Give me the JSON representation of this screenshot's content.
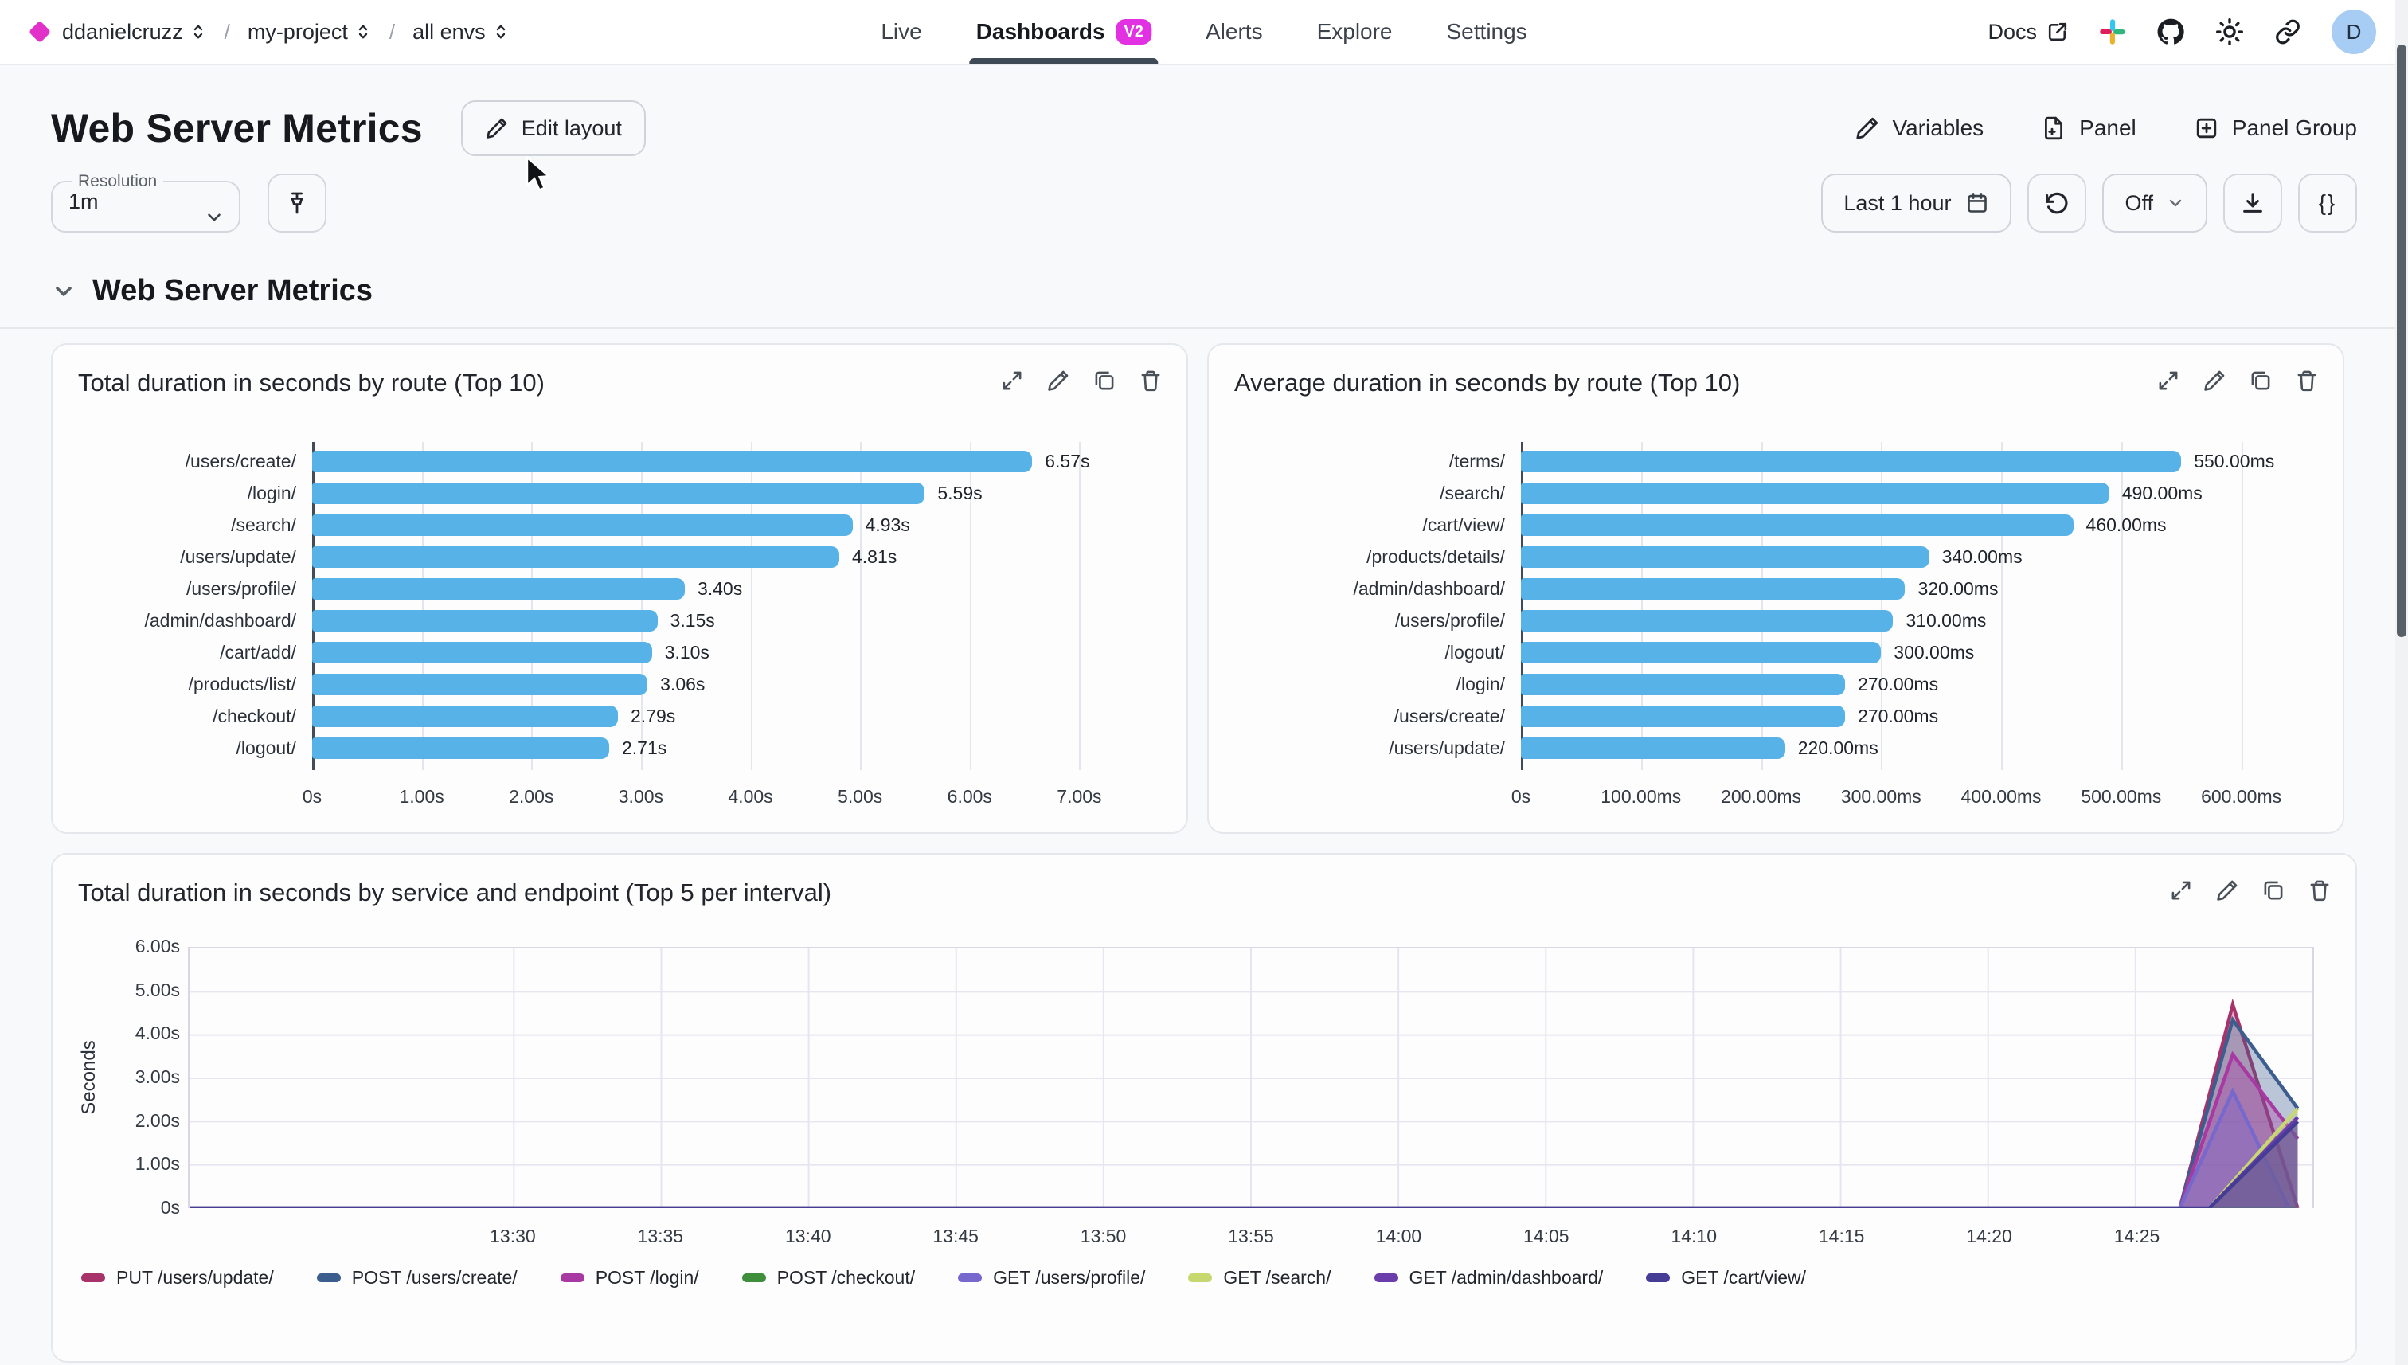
{
  "nav": {
    "breadcrumb": [
      "ddanielcruzz",
      "my-project",
      "all envs"
    ],
    "tabs": [
      {
        "label": "Live"
      },
      {
        "label": "Dashboards",
        "badge": "V2"
      },
      {
        "label": "Alerts"
      },
      {
        "label": "Explore"
      },
      {
        "label": "Settings"
      }
    ],
    "docs_label": "Docs",
    "avatar_initial": "D"
  },
  "header": {
    "title": "Web Server Metrics",
    "edit_layout_label": "Edit layout",
    "actions": [
      "Variables",
      "Panel",
      "Panel Group"
    ]
  },
  "controls": {
    "resolution_label": "Resolution",
    "resolution_value": "1m",
    "time_range_label": "Last 1 hour",
    "auto_refresh_label": "Off",
    "braces_label": "{}"
  },
  "section": {
    "title": "Web Server Metrics"
  },
  "colors": {
    "brand_magenta": "#e231c8",
    "badge_magenta": "#e231e2",
    "bar_blue": "#57b2e8",
    "active_tab_underline": "#3f4a57"
  },
  "icons": {
    "brand": "diamond",
    "breadcrumb": "up-down-chevrons",
    "docs": "external-link",
    "nav": [
      "slack",
      "github",
      "sun",
      "link",
      "avatar"
    ],
    "panel_actions": [
      "expand",
      "edit",
      "duplicate",
      "delete"
    ]
  },
  "chart_data": [
    {
      "type": "bar",
      "orientation": "horizontal",
      "title": "Total duration in seconds by route (Top 10)",
      "categories": [
        "/users/create/",
        "/login/",
        "/search/",
        "/users/update/",
        "/users/profile/",
        "/admin/dashboard/",
        "/cart/add/",
        "/products/list/",
        "/checkout/",
        "/logout/"
      ],
      "values": [
        6.57,
        5.59,
        4.93,
        4.81,
        3.4,
        3.15,
        3.1,
        3.06,
        2.79,
        2.71
      ],
      "value_labels": [
        "6.57s",
        "5.59s",
        "4.93s",
        "4.81s",
        "3.40s",
        "3.15s",
        "3.10s",
        "3.06s",
        "2.79s",
        "2.71s"
      ],
      "x_ticks": [
        "0s",
        "1.00s",
        "2.00s",
        "3.00s",
        "4.00s",
        "5.00s",
        "6.00s",
        "7.00s"
      ],
      "x_tick_values": [
        0,
        1,
        2,
        3,
        4,
        5,
        6,
        7
      ],
      "xmax": 7.6,
      "bar_color": "#57b2e8",
      "grid": true
    },
    {
      "type": "bar",
      "orientation": "horizontal",
      "title": "Average duration in seconds by route (Top 10)",
      "categories": [
        "/terms/",
        "/search/",
        "/cart/view/",
        "/products/details/",
        "/admin/dashboard/",
        "/users/profile/",
        "/logout/",
        "/login/",
        "/users/create/",
        "/users/update/"
      ],
      "values": [
        550,
        490,
        460,
        340,
        320,
        310,
        300,
        270,
        270,
        220
      ],
      "value_labels": [
        "550.00ms",
        "490.00ms",
        "460.00ms",
        "340.00ms",
        "320.00ms",
        "310.00ms",
        "300.00ms",
        "270.00ms",
        "270.00ms",
        "220.00ms"
      ],
      "x_ticks": [
        "0s",
        "100.00ms",
        "200.00ms",
        "300.00ms",
        "400.00ms",
        "500.00ms",
        "600.00ms"
      ],
      "x_tick_values": [
        0,
        100,
        200,
        300,
        400,
        500,
        600
      ],
      "xmax": 650,
      "bar_color": "#57b2e8",
      "grid": true
    },
    {
      "type": "area",
      "title": "Total duration in seconds by service and endpoint (Top 5 per interval)",
      "ylabel": "Seconds",
      "y_ticks": [
        "6.00s",
        "5.00s",
        "4.00s",
        "3.00s",
        "2.00s",
        "1.00s",
        "0s"
      ],
      "y_tick_values": [
        6,
        5,
        4,
        3,
        2,
        1,
        0
      ],
      "ylim": [
        0,
        6
      ],
      "x_ticks": [
        "13:30",
        "13:35",
        "13:40",
        "13:45",
        "13:50",
        "13:55",
        "14:00",
        "14:05",
        "14:10",
        "14:15",
        "14:20",
        "14:25"
      ],
      "x_tick_minutes": [
        0,
        5,
        10,
        15,
        20,
        25,
        30,
        35,
        40,
        45,
        50,
        55
      ],
      "x_domain_minutes": [
        -11,
        61
      ],
      "grid": true,
      "legend_position": "bottom",
      "series": [
        {
          "name": "PUT /users/update/",
          "color": "#a8336b",
          "points": [
            [
              -11,
              0
            ],
            [
              56.5,
              0
            ],
            [
              58.3,
              4.7
            ],
            [
              60.5,
              0
            ]
          ]
        },
        {
          "name": "POST /users/create/",
          "color": "#3c5e8f",
          "points": [
            [
              -11,
              0
            ],
            [
              56.5,
              0
            ],
            [
              58.3,
              4.35
            ],
            [
              60.5,
              2.3
            ]
          ]
        },
        {
          "name": "POST /login/",
          "color": "#a839a2",
          "points": [
            [
              -11,
              0
            ],
            [
              56.5,
              0
            ],
            [
              58.3,
              3.55
            ],
            [
              60.5,
              1.6
            ]
          ]
        },
        {
          "name": "POST /checkout/",
          "color": "#3e8e3c",
          "points": [
            [
              -11,
              0
            ],
            [
              60.5,
              0
            ]
          ]
        },
        {
          "name": "GET /users/profile/",
          "color": "#7668cc",
          "points": [
            [
              -11,
              0
            ],
            [
              56.5,
              0
            ],
            [
              58.3,
              2.7
            ],
            [
              60.2,
              0
            ]
          ]
        },
        {
          "name": "GET /search/",
          "color": "#c8d870",
          "points": [
            [
              -11,
              0
            ],
            [
              57.5,
              0
            ],
            [
              60.5,
              2.3
            ]
          ]
        },
        {
          "name": "GET /admin/dashboard/",
          "color": "#6a3daa",
          "points": [
            [
              -11,
              0
            ],
            [
              57.5,
              0
            ],
            [
              60.5,
              2.1
            ]
          ]
        },
        {
          "name": "GET /cart/view/",
          "color": "#453c96",
          "points": [
            [
              -11,
              0
            ],
            [
              57.5,
              0
            ],
            [
              60.5,
              2.0
            ]
          ]
        }
      ]
    }
  ]
}
